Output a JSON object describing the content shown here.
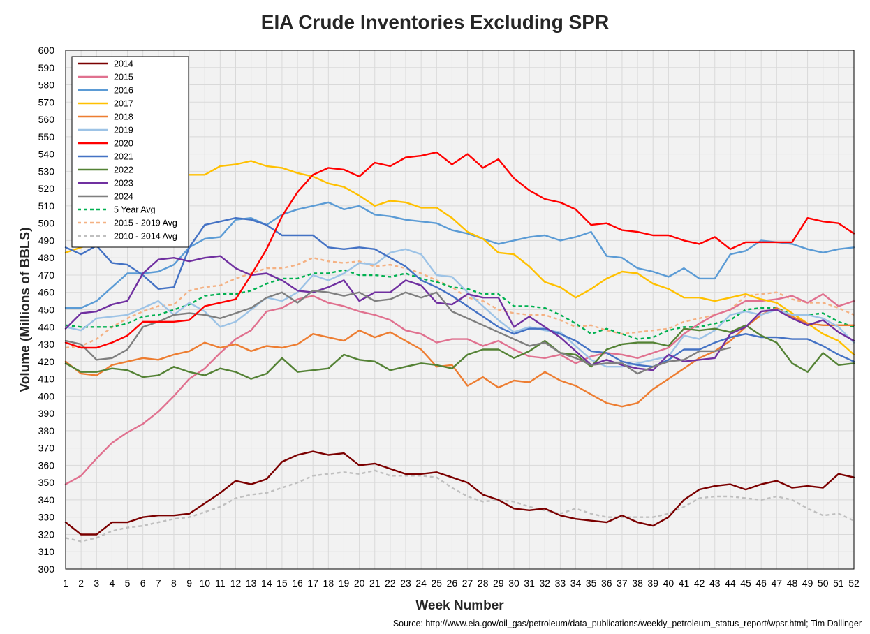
{
  "chart_data": {
    "type": "line",
    "title": "EIA Crude Inventories Excluding SPR",
    "xlabel": "Week Number",
    "ylabel": "Volume (Millions of BBLS)",
    "xlim": [
      1,
      52
    ],
    "ylim": [
      300,
      600
    ],
    "y_tick_step": 10,
    "grid": true,
    "legend_position": "top-left",
    "x": [
      1,
      2,
      3,
      4,
      5,
      6,
      7,
      8,
      9,
      10,
      11,
      12,
      13,
      14,
      15,
      16,
      17,
      18,
      19,
      20,
      21,
      22,
      23,
      24,
      25,
      26,
      27,
      28,
      29,
      30,
      31,
      32,
      33,
      34,
      35,
      36,
      37,
      38,
      39,
      40,
      41,
      42,
      43,
      44,
      45,
      46,
      47,
      48,
      49,
      50,
      51,
      52
    ],
    "series": [
      {
        "name": "2014",
        "color": "#7b0000",
        "dash": "solid",
        "values": [
          327,
          320,
          320,
          327,
          327,
          330,
          331,
          331,
          332,
          338,
          344,
          351,
          349,
          352,
          362,
          366,
          368,
          366,
          367,
          360,
          361,
          358,
          355,
          355,
          356,
          353,
          350,
          343,
          340,
          335,
          334,
          335,
          331,
          329,
          328,
          327,
          331,
          327,
          325,
          330,
          340,
          346,
          348,
          349,
          346,
          349,
          351,
          347,
          348,
          347,
          355,
          353
        ]
      },
      {
        "name": "2015",
        "color": "#e0718f",
        "dash": "solid",
        "values": [
          349,
          354,
          364,
          373,
          379,
          384,
          391,
          400,
          410,
          416,
          425,
          433,
          438,
          449,
          451,
          456,
          458,
          454,
          452,
          449,
          447,
          444,
          438,
          436,
          431,
          433,
          433,
          429,
          432,
          427,
          423,
          422,
          424,
          419,
          423,
          425,
          424,
          422,
          425,
          428,
          436,
          442,
          447,
          450,
          455,
          455,
          456,
          458,
          454,
          459,
          452,
          455
        ]
      },
      {
        "name": "2016",
        "color": "#5b9bd5",
        "dash": "solid",
        "values": [
          451,
          451,
          455,
          463,
          471,
          471,
          472,
          476,
          486,
          491,
          492,
          502,
          503,
          499,
          505,
          508,
          510,
          512,
          508,
          510,
          505,
          504,
          502,
          501,
          500,
          496,
          494,
          491,
          488,
          490,
          492,
          493,
          490,
          492,
          495,
          481,
          480,
          474,
          472,
          469,
          474,
          468,
          468,
          482,
          484,
          490,
          489,
          488,
          485,
          483,
          485,
          486
        ]
      },
      {
        "name": "2017",
        "color": "#ffc000",
        "dash": "solid",
        "values": [
          483,
          486,
          489,
          null,
          null,
          null,
          null,
          null,
          528,
          528,
          533,
          534,
          536,
          533,
          532,
          529,
          527,
          523,
          521,
          516,
          510,
          513,
          512,
          509,
          509,
          503,
          495,
          491,
          483,
          482,
          475,
          466,
          463,
          457,
          462,
          468,
          472,
          471,
          465,
          462,
          457,
          457,
          455,
          457,
          459,
          456,
          454,
          448,
          442,
          436,
          432,
          424
        ]
      },
      {
        "name": "2018",
        "color": "#ed7d31",
        "dash": "solid",
        "values": [
          420,
          413,
          412,
          418,
          420,
          422,
          421,
          424,
          426,
          431,
          428,
          430,
          426,
          429,
          428,
          430,
          436,
          434,
          432,
          438,
          434,
          437,
          432,
          427,
          417,
          418,
          406,
          411,
          405,
          409,
          408,
          414,
          409,
          406,
          401,
          396,
          394,
          396,
          404,
          410,
          416,
          422,
          426,
          432,
          440,
          447,
          451,
          446,
          442,
          441,
          441,
          441
        ]
      },
      {
        "name": "2019",
        "color": "#9dc3e6",
        "dash": "solid",
        "values": [
          440,
          438,
          445,
          446,
          447,
          451,
          455,
          447,
          454,
          449,
          440,
          443,
          450,
          457,
          455,
          460,
          470,
          467,
          471,
          477,
          476,
          483,
          485,
          482,
          470,
          469,
          460,
          452,
          444,
          437,
          440,
          438,
          437,
          429,
          421,
          417,
          417,
          419,
          421,
          423,
          435,
          433,
          438,
          447,
          449,
          447,
          450,
          447,
          447,
          445,
          440,
          431
        ]
      },
      {
        "name": "2020",
        "color": "#ff0000",
        "dash": "solid",
        "values": [
          431,
          428,
          428,
          431,
          435,
          443,
          443,
          443,
          444,
          452,
          454,
          456,
          470,
          485,
          504,
          518,
          528,
          532,
          531,
          527,
          535,
          533,
          538,
          539,
          541,
          534,
          540,
          532,
          537,
          526,
          519,
          514,
          512,
          508,
          499,
          500,
          496,
          495,
          493,
          493,
          490,
          488,
          492,
          485,
          489,
          489,
          489,
          489,
          503,
          501,
          500,
          494
        ]
      },
      {
        "name": "2021",
        "color": "#4472c4",
        "dash": "solid",
        "values": [
          486,
          482,
          487,
          477,
          476,
          470,
          462,
          463,
          486,
          499,
          501,
          503,
          502,
          499,
          493,
          493,
          493,
          486,
          485,
          486,
          485,
          480,
          475,
          467,
          463,
          458,
          452,
          446,
          440,
          436,
          439,
          439,
          436,
          432,
          426,
          425,
          420,
          418,
          417,
          421,
          427,
          427,
          431,
          434,
          436,
          434,
          434,
          433,
          433,
          429,
          424,
          420
        ]
      },
      {
        "name": "2022",
        "color": "#548235",
        "dash": "solid",
        "values": [
          419,
          414,
          414,
          416,
          415,
          411,
          412,
          417,
          414,
          412,
          416,
          414,
          410,
          413,
          422,
          414,
          415,
          416,
          424,
          421,
          420,
          415,
          417,
          419,
          418,
          416,
          424,
          427,
          427,
          422,
          426,
          432,
          425,
          424,
          417,
          427,
          430,
          431,
          431,
          429,
          439,
          438,
          439,
          437,
          441,
          435,
          431,
          419,
          414,
          425,
          418,
          419
        ]
      },
      {
        "name": "2023",
        "color": "#7030a0",
        "dash": "solid",
        "values": [
          439,
          448,
          449,
          453,
          455,
          471,
          479,
          480,
          478,
          480,
          481,
          474,
          470,
          471,
          467,
          461,
          460,
          463,
          467,
          455,
          460,
          460,
          467,
          464,
          454,
          453,
          459,
          457,
          457,
          440,
          446,
          440,
          434,
          426,
          418,
          421,
          418,
          416,
          415,
          424,
          420,
          421,
          422,
          436,
          440,
          449,
          450,
          445,
          441,
          444,
          437,
          432
        ]
      },
      {
        "name": "2024",
        "color": "#7f7f7f",
        "dash": "solid",
        "values": [
          432,
          430,
          421,
          422,
          427,
          440,
          443,
          447,
          448,
          447,
          445,
          448,
          451,
          457,
          460,
          454,
          461,
          460,
          458,
          460,
          455,
          456,
          460,
          457,
          460,
          449,
          445,
          441,
          437,
          433,
          429,
          431,
          425,
          422,
          418,
          419,
          419,
          413,
          417,
          420,
          421,
          426,
          426,
          428,
          null,
          null,
          null,
          null,
          null,
          null,
          null,
          null
        ]
      },
      {
        "name": "5 Year Avg",
        "color": "#00b050",
        "dash": "5,4",
        "values": [
          441,
          440,
          440,
          440,
          442,
          446,
          447,
          450,
          453,
          458,
          459,
          459,
          461,
          465,
          468,
          468,
          471,
          471,
          473,
          470,
          470,
          469,
          471,
          468,
          466,
          463,
          462,
          459,
          459,
          452,
          452,
          451,
          447,
          442,
          436,
          439,
          436,
          433,
          434,
          438,
          440,
          440,
          442,
          444,
          450,
          451,
          451,
          447,
          447,
          448,
          443,
          440
        ]
      },
      {
        "name": "2015 - 2019 Avg",
        "color": "#f4b183",
        "dash": "5,4",
        "values": [
          428,
          429,
          433,
          440,
          445,
          449,
          452,
          453,
          461,
          463,
          464,
          468,
          471,
          474,
          474,
          476,
          480,
          478,
          477,
          478,
          475,
          476,
          474,
          471,
          467,
          463,
          457,
          455,
          450,
          448,
          447,
          447,
          444,
          440,
          441,
          438,
          436,
          437,
          438,
          439,
          443,
          445,
          447,
          450,
          458,
          459,
          460,
          456,
          454,
          454,
          451,
          447
        ]
      },
      {
        "name": "2010 - 2014 Avg",
        "color": "#bfbfbf",
        "dash": "5,4",
        "values": [
          318,
          316,
          318,
          322,
          324,
          325,
          327,
          329,
          330,
          333,
          336,
          341,
          343,
          344,
          347,
          350,
          354,
          355,
          356,
          355,
          357,
          354,
          354,
          354,
          353,
          347,
          342,
          339,
          340,
          339,
          336,
          334,
          332,
          335,
          332,
          330,
          330,
          330,
          330,
          332,
          336,
          341,
          342,
          342,
          341,
          340,
          342,
          340,
          335,
          331,
          332,
          328
        ]
      }
    ]
  },
  "source": "Source: http://www.eia.gov/oil_gas/petroleum/data_publications/weekly_petroleum_status_report/wpsr.html; Tim Dallinger"
}
